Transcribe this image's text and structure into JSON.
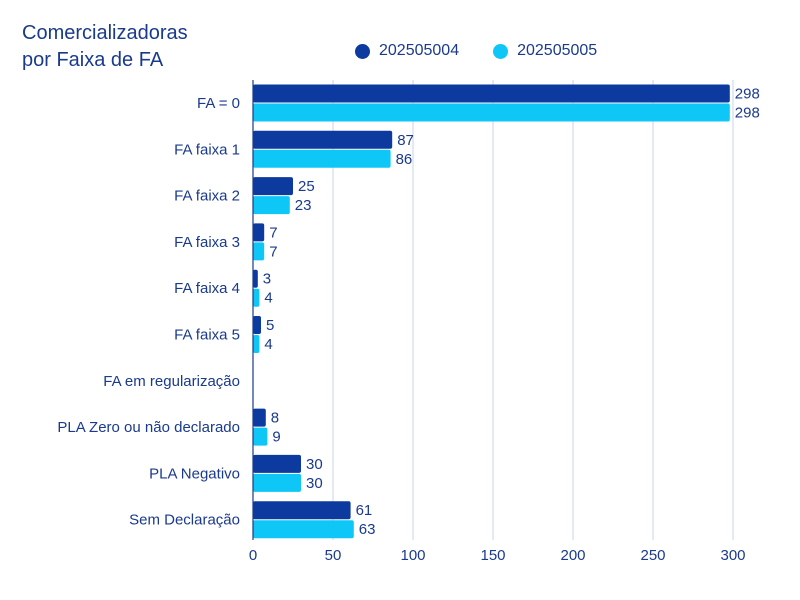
{
  "title": "Comercializadoras\npor Faixa de FA",
  "legend": {
    "items": [
      {
        "name": "202505004",
        "color": "#0d3a9e"
      },
      {
        "name": "202505005",
        "color": "#0fc7f7"
      }
    ]
  },
  "chart_data": {
    "type": "bar",
    "orientation": "horizontal",
    "title": "Comercializadoras\npor Faixa de FA",
    "categories": [
      "FA = 0",
      "FA faixa 1",
      "FA faixa 2",
      "FA faixa 3",
      "FA faixa 4",
      "FA faixa 5",
      "FA em regularização",
      "PLA Zero ou não declarado",
      "PLA Negativo",
      "Sem Declaração"
    ],
    "series": [
      {
        "name": "202505004",
        "color": "#0d3a9e",
        "values": [
          298,
          87,
          25,
          7,
          3,
          5,
          null,
          8,
          30,
          61
        ]
      },
      {
        "name": "202505005",
        "color": "#0fc7f7",
        "values": [
          298,
          86,
          23,
          7,
          4,
          4,
          null,
          9,
          30,
          63
        ]
      }
    ],
    "xlim": [
      0,
      300
    ],
    "xticks": [
      0,
      50,
      100,
      150,
      200,
      250,
      300
    ],
    "grid": true,
    "legend_position": "top-right",
    "xlabel": "",
    "ylabel": ""
  }
}
